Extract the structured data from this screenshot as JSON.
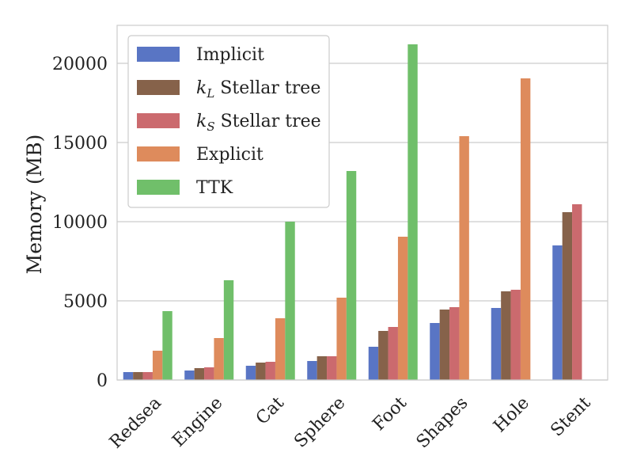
{
  "chart_data": {
    "type": "bar",
    "ylabel": "Memory (MB)",
    "ylim": [
      0,
      22400
    ],
    "yticks": [
      0,
      5000,
      10000,
      15000,
      20000
    ],
    "grid": "horizontal",
    "legend_position": "top-left",
    "categories": [
      "Redsea",
      "Engine",
      "Cat",
      "Sphere",
      "Foot",
      "Shapes",
      "Hole",
      "Stent"
    ],
    "series": [
      {
        "name": "Implicit",
        "color": "#5975c4",
        "values": [
          500,
          600,
          900,
          1200,
          2100,
          3600,
          4550,
          8500
        ]
      },
      {
        "name": "kL Stellar tree",
        "label_main": "k",
        "label_sub": "L",
        "label_rest": " Stellar tree",
        "color": "#86624a",
        "values": [
          500,
          750,
          1100,
          1500,
          3100,
          4450,
          5600,
          10600
        ]
      },
      {
        "name": "kS Stellar tree",
        "label_main": "k",
        "label_sub": "S",
        "label_rest": " Stellar tree",
        "color": "#cb6a6e",
        "values": [
          500,
          800,
          1150,
          1500,
          3350,
          4600,
          5700,
          11100
        ]
      },
      {
        "name": "Explicit",
        "color": "#de8b5c",
        "values": [
          1850,
          2650,
          3900,
          5200,
          9050,
          15400,
          19050,
          null
        ]
      },
      {
        "name": "TTK",
        "color": "#70bf6a",
        "values": [
          4350,
          6300,
          10000,
          13200,
          21200,
          null,
          null,
          null
        ]
      }
    ]
  }
}
